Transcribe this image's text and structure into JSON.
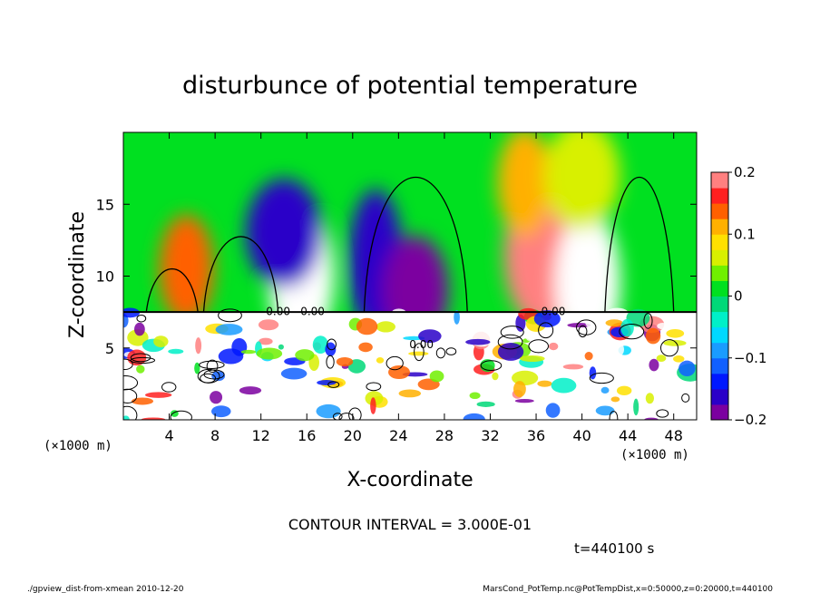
{
  "chart_data": {
    "type": "heatmap",
    "title": "disturbunce of potential temperature",
    "xlabel": "X-coordinate",
    "ylabel": "Z-coordinate",
    "x_unit": "(×1000 m)",
    "y_unit": "(×1000 m)",
    "xlim": [
      0,
      50
    ],
    "ylim": [
      0,
      20
    ],
    "x_ticks": [
      4,
      8,
      12,
      16,
      20,
      24,
      28,
      32,
      36,
      40,
      44,
      48
    ],
    "y_ticks": [
      5,
      10,
      15
    ],
    "colorbar": {
      "range": [
        -0.2,
        0.2
      ],
      "ticks": [
        0.2,
        0.1,
        0,
        -0.1,
        -0.2
      ],
      "tick_labels": [
        "0.2",
        "0.1",
        "0",
        "−0.1",
        "−0.2"
      ],
      "levels": 16
    },
    "contour_labels": [
      "0.00",
      "0.00",
      "0.00",
      "0.00"
    ],
    "contour_interval": "CONTOUR INTERVAL = 3.000E-01",
    "time_label": "t=440100 s",
    "upper_features": [
      {
        "x": 5.5,
        "z": 10.5,
        "value": 0.14
      },
      {
        "x": 15.5,
        "z": 10.0,
        "value": -0.22
      },
      {
        "x": 14.0,
        "z": 13.0,
        "value": -0.17
      },
      {
        "x": 22.0,
        "z": 11.0,
        "value": -0.16
      },
      {
        "x": 25.5,
        "z": 9.0,
        "value": -0.2
      },
      {
        "x": 36.5,
        "z": 11.5,
        "value": 0.2
      },
      {
        "x": 35.0,
        "z": 16.5,
        "value": 0.12
      },
      {
        "x": 40.5,
        "z": 9.5,
        "value": 0.24
      },
      {
        "x": 40.0,
        "z": 17.0,
        "value": 0.05
      }
    ]
  },
  "footer": {
    "left": "./gpview_dist-from-xmean  2010-12-20",
    "right": "MarsCond_PotTemp.nc@PotTempDist,x=0:50000,z=0:20000,t=440100"
  },
  "colors": {
    "palette": [
      "#7b00a0",
      "#2a00c8",
      "#0018ff",
      "#1060ff",
      "#1a9cff",
      "#00d8ff",
      "#00f0c8",
      "#00d878",
      "#00e020",
      "#70f000",
      "#d8f000",
      "#ffe000",
      "#ffb000",
      "#ff6000",
      "#ff2020",
      "#ff8080"
    ]
  }
}
